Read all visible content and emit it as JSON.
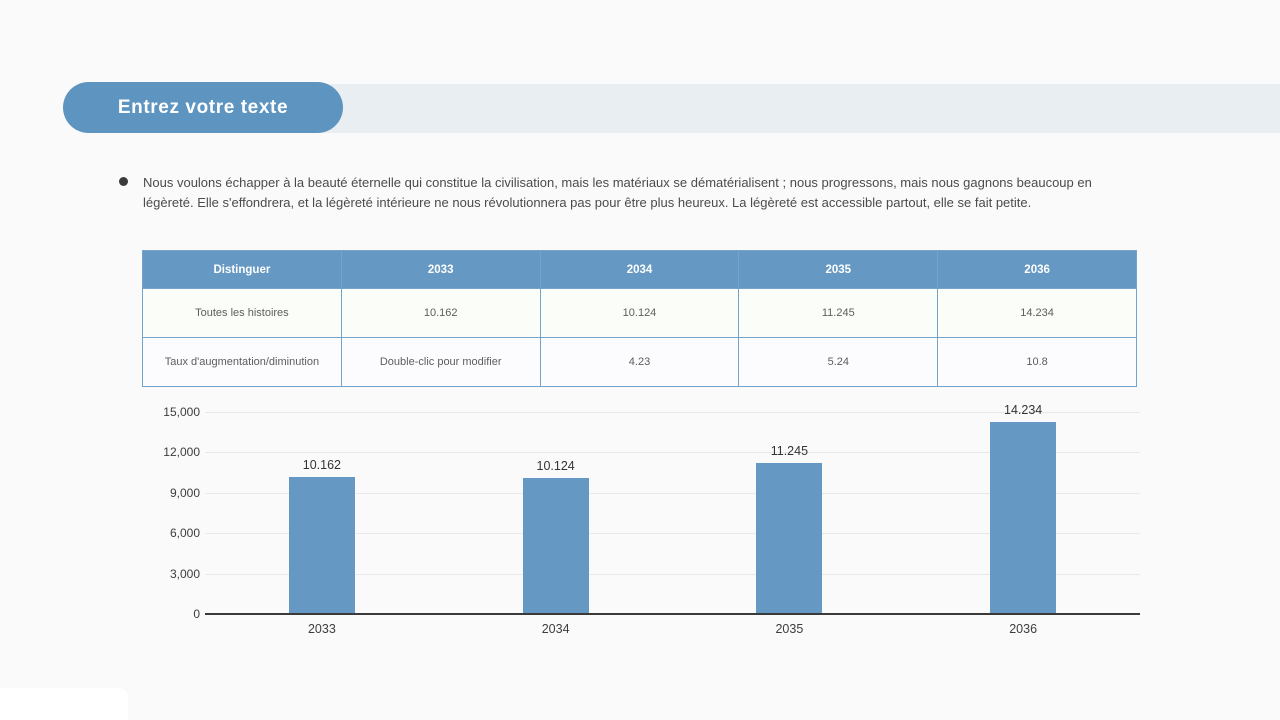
{
  "header": {
    "title": "Entrez votre texte"
  },
  "paragraph": {
    "text": "Nous voulons échapper à la beauté éternelle qui constitue la civilisation, mais les matériaux se dématérialisent ; nous progressons, mais nous gagnons beaucoup en légèreté. Elle s'effondrera, et la légèreté intérieure ne nous révolutionnera pas pour être plus heureux. La légèreté est accessible partout, elle se fait petite."
  },
  "table": {
    "headers": [
      "Distinguer",
      "2033",
      "2034",
      "2035",
      "2036"
    ],
    "rows": [
      [
        "Toutes les histoires",
        "10.162",
        "10.124",
        "11.245",
        "14.234"
      ],
      [
        "Taux d'augmentation/diminution",
        "Double-clic pour modifier",
        "4.23",
        "5.24",
        "10.8"
      ]
    ]
  },
  "chart_data": {
    "type": "bar",
    "title": "",
    "xlabel": "",
    "ylabel": "",
    "categories": [
      "2033",
      "2034",
      "2035",
      "2036"
    ],
    "values": [
      10162,
      10124,
      11245,
      14234
    ],
    "value_labels": [
      "10.162",
      "10.124",
      "11.245",
      "14.234"
    ],
    "ylim": [
      0,
      15000
    ],
    "yticks": [
      "0",
      "3,000",
      "6,000",
      "9,000",
      "12,000",
      "15,000"
    ],
    "grid": true,
    "legend": false,
    "bar_color": "#6598c3"
  },
  "colors": {
    "accent_blue": "#6598c3",
    "band_blue_gray": "#e8eef2",
    "axis_dark": "#3a3a3a"
  }
}
